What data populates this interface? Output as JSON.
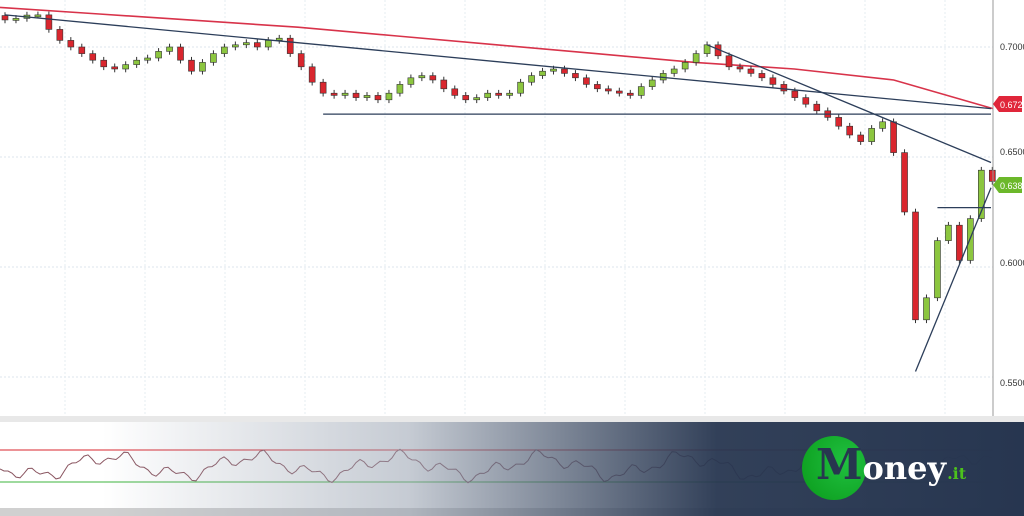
{
  "chart_data": {
    "type": "candlestick",
    "title": "",
    "xlabel": "",
    "ylabel": "",
    "ylim": [
      0.54,
      0.72
    ],
    "y_ticks": [
      "0.7000",
      "0.6500",
      "0.6000",
      "0.5500"
    ],
    "grid": true,
    "closes": [
      0.7123,
      0.713,
      0.7145,
      0.7146,
      0.708,
      0.703,
      0.7,
      0.697,
      0.694,
      0.691,
      0.69,
      0.692,
      0.694,
      0.695,
      0.698,
      0.7,
      0.694,
      0.689,
      0.693,
      0.697,
      0.7,
      0.701,
      0.702,
      0.7,
      0.703,
      0.704,
      0.697,
      0.691,
      0.684,
      0.679,
      0.678,
      0.679,
      0.677,
      0.678,
      0.676,
      0.679,
      0.683,
      0.686,
      0.687,
      0.685,
      0.681,
      0.678,
      0.676,
      0.677,
      0.679,
      0.678,
      0.679,
      0.684,
      0.687,
      0.689,
      0.69,
      0.688,
      0.686,
      0.683,
      0.681,
      0.68,
      0.679,
      0.678,
      0.682,
      0.685,
      0.688,
      0.69,
      0.693,
      0.697,
      0.701,
      0.696,
      0.691,
      0.69,
      0.688,
      0.686,
      0.683,
      0.68,
      0.677,
      0.674,
      0.671,
      0.668,
      0.664,
      0.66,
      0.657,
      0.663,
      0.666,
      0.652,
      0.625,
      0.576,
      0.586,
      0.612,
      0.619,
      0.603,
      0.622,
      0.644,
      0.6389
    ],
    "moving_average": [
      0.718,
      0.715,
      0.712,
      0.709,
      0.705,
      0.701,
      0.697,
      0.693,
      0.69,
      0.685,
      0.672
    ],
    "trendlines": [
      {
        "from": [
          0,
          0.7146
        ],
        "to": [
          90,
          0.672
        ]
      },
      {
        "from": [
          64,
          0.701
        ],
        "to": [
          90,
          0.6475
        ]
      },
      {
        "from": [
          29,
          0.6695
        ],
        "to": [
          90,
          0.6695
        ]
      },
      {
        "from": [
          85,
          0.627
        ],
        "to": [
          90,
          0.627
        ]
      },
      {
        "from": [
          83,
          0.5525
        ],
        "to": [
          90,
          0.636
        ]
      }
    ],
    "price_labels": [
      {
        "value": "0.6720",
        "color": "#e0263a"
      },
      {
        "value": "0.6389",
        "color": "#6cb82a"
      }
    ],
    "colors": {
      "up": "#8cc63f",
      "down": "#d9262e",
      "ma": "#d8334a",
      "trendline": "#2c3e5a"
    }
  },
  "logo": {
    "main_letter": "M",
    "rest": "oney",
    "suffix": ".it"
  }
}
